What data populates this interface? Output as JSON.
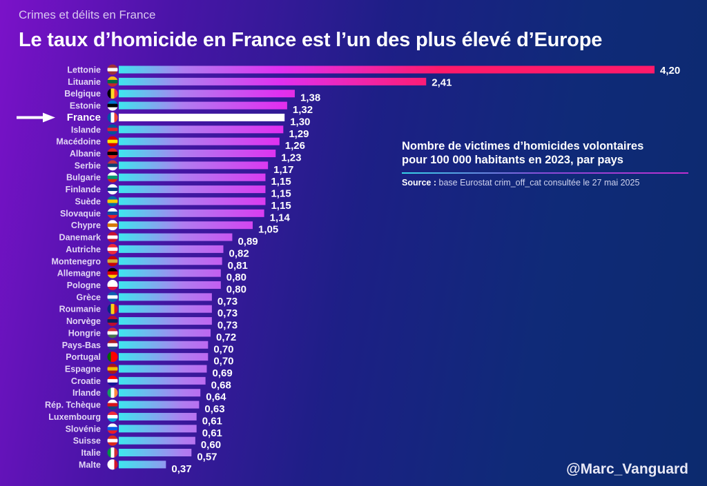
{
  "kicker": "Crimes et délits en France",
  "title": "Le taux d’homicide en France est l’un des plus élevé d’Europe",
  "legend": {
    "line1": "Nombre de victimes d’homicides volontaires",
    "line2": "pour 100 000 habitants en 2023, par pays",
    "source_label": "Source :",
    "source_text": " base Eurostat crim_off_cat consultée le 27 mai 2025"
  },
  "handle": "@Marc_Vanguard",
  "colors": {
    "bar_start": "#3ee6ee",
    "bar_mid": "#b07df0",
    "bar_end": "#ff1a6a",
    "highlight": "#ffffff"
  },
  "chart_data": {
    "type": "bar",
    "orientation": "horizontal",
    "highlight": "France",
    "categories": [
      "Lettonie",
      "Lituanie",
      "Belgique",
      "Estonie",
      "France",
      "Islande",
      "Macédoine",
      "Albanie",
      "Serbie",
      "Bulgarie",
      "Finlande",
      "Suède",
      "Slovaquie",
      "Chypre",
      "Danemark",
      "Autriche",
      "Montenegro",
      "Allemagne",
      "Pologne",
      "Grèce",
      "Roumanie",
      "Norvège",
      "Hongrie",
      "Pays-Bas",
      "Portugal",
      "Espagne",
      "Croatie",
      "Irlande",
      "Rép. Tchèque",
      "Luxembourg",
      "Slovénie",
      "Suisse",
      "Italie",
      "Malte"
    ],
    "values": [
      4.2,
      2.41,
      1.38,
      1.32,
      1.3,
      1.29,
      1.26,
      1.23,
      1.17,
      1.15,
      1.15,
      1.15,
      1.14,
      1.05,
      0.89,
      0.82,
      0.81,
      0.8,
      0.8,
      0.73,
      0.73,
      0.73,
      0.72,
      0.7,
      0.7,
      0.69,
      0.68,
      0.64,
      0.63,
      0.61,
      0.61,
      0.6,
      0.57,
      0.37
    ],
    "value_labels": [
      "4,20",
      "2,41",
      "1,38",
      "1,32",
      "1,30",
      "1,29",
      "1,26",
      "1,23",
      "1,17",
      "1,15",
      "1,15",
      "1,15",
      "1,14",
      "1,05",
      "0,89",
      "0,82",
      "0,81",
      "0,80",
      "0,80",
      "0,73",
      "0,73",
      "0,73",
      "0,72",
      "0,70",
      "0,70",
      "0,69",
      "0,68",
      "0,64",
      "0,63",
      "0,61",
      "0,61",
      "0,60",
      "0,57",
      "0,37"
    ],
    "flag_icons": {
      "Lettonie": [
        "h",
        "#9e3039",
        "#fff",
        "#9e3039"
      ],
      "Lituanie": [
        "h",
        "#fdb913",
        "#006a44",
        "#c1272d"
      ],
      "Belgique": [
        "v",
        "#000",
        "#fdda24",
        "#ef3340"
      ],
      "Estonie": [
        "h",
        "#0072ce",
        "#000",
        "#fff"
      ],
      "France": [
        "v",
        "#0055a4",
        "#fff",
        "#ef4135"
      ],
      "Islande": [
        "h",
        "#02529c",
        "#dc1e35",
        "#02529c"
      ],
      "Macédoine": [
        "h",
        "#d20000",
        "#ffe600",
        "#d20000"
      ],
      "Albanie": [
        "h",
        "#e41e20",
        "#000",
        "#e41e20"
      ],
      "Serbie": [
        "h",
        "#c6363c",
        "#0c4076",
        "#fff"
      ],
      "Bulgarie": [
        "h",
        "#fff",
        "#00966e",
        "#d62612"
      ],
      "Finlande": [
        "h",
        "#fff",
        "#003580",
        "#fff"
      ],
      "Suède": [
        "h",
        "#006aa7",
        "#fecc00",
        "#006aa7"
      ],
      "Slovaquie": [
        "h",
        "#fff",
        "#0b4ea2",
        "#ee1c25"
      ],
      "Chypre": [
        "h",
        "#fff",
        "#d57800",
        "#fff"
      ],
      "Danemark": [
        "h",
        "#c8102e",
        "#fff",
        "#c8102e"
      ],
      "Autriche": [
        "h",
        "#ed2939",
        "#fff",
        "#ed2939"
      ],
      "Montenegro": [
        "h",
        "#c40308",
        "#d3ae3b",
        "#c40308"
      ],
      "Allemagne": [
        "h",
        "#000",
        "#dd0000",
        "#ffce00"
      ],
      "Pologne": [
        "h",
        "#fff",
        "#fff",
        "#dc143c"
      ],
      "Grèce": [
        "h",
        "#0d5eaf",
        "#fff",
        "#0d5eaf"
      ],
      "Roumanie": [
        "v",
        "#002b7f",
        "#fcd116",
        "#ce1126"
      ],
      "Norvège": [
        "h",
        "#ba0c2f",
        "#00205b",
        "#ba0c2f"
      ],
      "Hongrie": [
        "h",
        "#ce2939",
        "#fff",
        "#477050"
      ],
      "Pays-Bas": [
        "h",
        "#ae1c28",
        "#fff",
        "#21468b"
      ],
      "Portugal": [
        "v",
        "#006600",
        "#ff0000",
        "#ff0000"
      ],
      "Espagne": [
        "h",
        "#aa151b",
        "#f1bf00",
        "#aa151b"
      ],
      "Croatie": [
        "h",
        "#ff0000",
        "#fff",
        "#171796"
      ],
      "Irlande": [
        "v",
        "#169b62",
        "#fff",
        "#ff883e"
      ],
      "Rép. Tchèque": [
        "h",
        "#fff",
        "#d7141a",
        "#11457e"
      ],
      "Luxembourg": [
        "h",
        "#ed2939",
        "#fff",
        "#00a1de"
      ],
      "Slovénie": [
        "h",
        "#fff",
        "#005ce5",
        "#ed1c24"
      ],
      "Suisse": [
        "h",
        "#da291c",
        "#fff",
        "#da291c"
      ],
      "Italie": [
        "v",
        "#009246",
        "#fff",
        "#ce2b37"
      ],
      "Malte": [
        "v",
        "#fff",
        "#fff",
        "#cf142b"
      ]
    }
  }
}
